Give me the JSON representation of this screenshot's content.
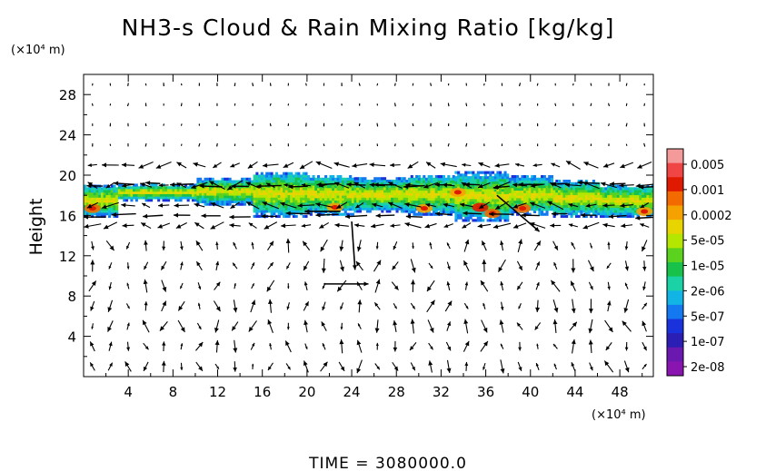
{
  "chart_data": {
    "type": "heatmap",
    "title": "NH3-s Cloud & Rain Mixing Ratio [kg/kg]",
    "xlabel": "",
    "ylabel": "Height",
    "x_unit_label": "(×10⁴ m)",
    "y_unit_label": "(×10⁴ m)",
    "xlim": [
      0,
      51
    ],
    "ylim": [
      0,
      30
    ],
    "x_ticks": [
      4,
      8,
      12,
      16,
      20,
      24,
      28,
      32,
      36,
      40,
      44,
      48
    ],
    "y_ticks": [
      4,
      8,
      12,
      16,
      20,
      24,
      28
    ],
    "colorbar": {
      "labels": [
        "0.005",
        "0.001",
        "0.0002",
        "5e-05",
        "1e-05",
        "2e-06",
        "5e-07",
        "1e-07",
        "2e-08"
      ],
      "colors": [
        "#f59a9a",
        "#f04545",
        "#e01a00",
        "#f26a00",
        "#f5a200",
        "#e8d400",
        "#b4e600",
        "#5ad21e",
        "#18c24a",
        "#1ad2a6",
        "#12b4e6",
        "#1478f0",
        "#1a32dc",
        "#2a1eb4",
        "#6a18b0",
        "#8a14b0"
      ]
    },
    "layer": {
      "segments": [
        {
          "x0": 0,
          "x1": 3,
          "y0": 15.8,
          "y1": 19.0
        },
        {
          "x0": 3,
          "x1": 10,
          "y0": 17.4,
          "y1": 19.0
        },
        {
          "x0": 10,
          "x1": 15,
          "y0": 17.0,
          "y1": 19.6
        },
        {
          "x0": 15,
          "x1": 20,
          "y0": 15.8,
          "y1": 20.3
        },
        {
          "x0": 20,
          "x1": 24,
          "y0": 16.0,
          "y1": 20.0
        },
        {
          "x0": 24,
          "x1": 29,
          "y0": 16.3,
          "y1": 19.6
        },
        {
          "x0": 29,
          "x1": 33,
          "y0": 16.0,
          "y1": 20.0
        },
        {
          "x0": 33,
          "x1": 38,
          "y0": 15.4,
          "y1": 20.2
        },
        {
          "x0": 38,
          "x1": 42,
          "y0": 16.0,
          "y1": 19.8
        },
        {
          "x0": 42,
          "x1": 46,
          "y0": 15.8,
          "y1": 19.4
        },
        {
          "x0": 46,
          "x1": 51,
          "y0": 15.8,
          "y1": 19.0
        }
      ],
      "hotspots": [
        {
          "x": 0.8,
          "y": 16.7,
          "level": 2
        },
        {
          "x": 22.5,
          "y": 16.8,
          "level": 3
        },
        {
          "x": 30.5,
          "y": 16.7,
          "level": 3
        },
        {
          "x": 33.5,
          "y": 18.3,
          "level": 3
        },
        {
          "x": 35.5,
          "y": 16.8,
          "level": 1
        },
        {
          "x": 36.6,
          "y": 16.2,
          "level": 2
        },
        {
          "x": 39.3,
          "y": 16.7,
          "level": 2
        },
        {
          "x": 50.2,
          "y": 16.4,
          "level": 3
        }
      ]
    },
    "wind_field": {
      "nx": 32,
      "ny": 15,
      "jets": [
        {
          "x0": 0,
          "x1": 51,
          "y": 16.0,
          "dir": -1
        },
        {
          "x0": 0,
          "x1": 51,
          "y": 19.0,
          "dir": -1
        }
      ],
      "highlights": [
        {
          "x0": 24.0,
          "y0": 15.4,
          "x1": 24.3,
          "y1": 10.6
        },
        {
          "x0": 37.0,
          "y0": 18.0,
          "x1": 40.8,
          "y1": 14.4
        },
        {
          "x0": 21.5,
          "y0": 9.2,
          "x1": 25.5,
          "y1": 9.2
        },
        {
          "x0": 23.0,
          "y0": 16.4,
          "x1": 19.8,
          "y1": 16.4
        }
      ]
    },
    "footer": "TIME  =  3080000.0",
    "grid": false
  }
}
